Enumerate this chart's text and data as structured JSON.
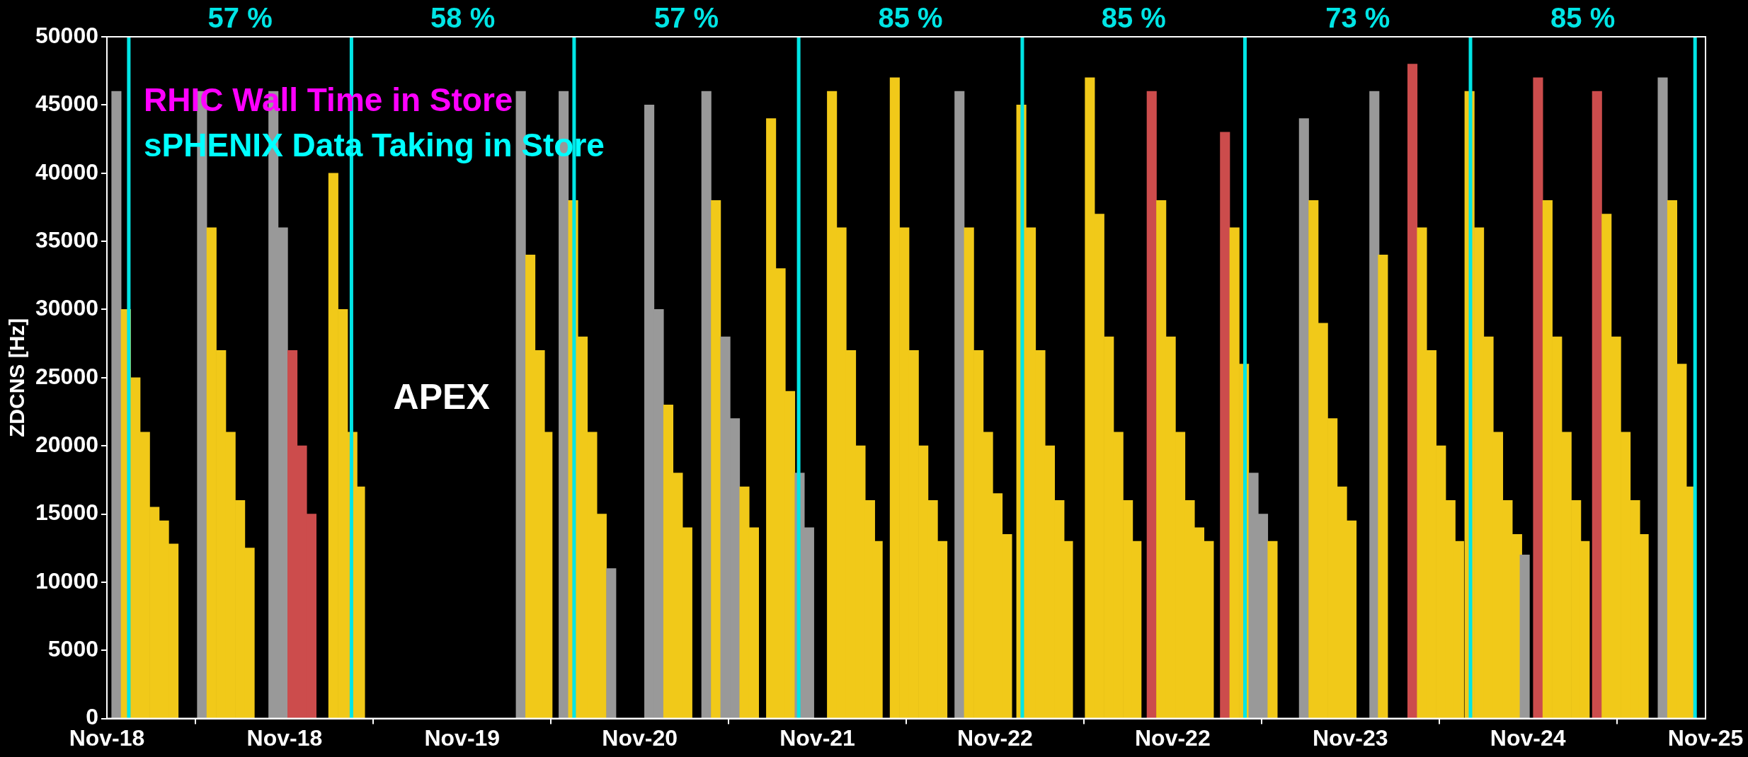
{
  "chart_data": {
    "type": "bar",
    "ylabel": "ZDCNS [Hz]",
    "xlim": [
      "--11-18T04:00",
      "--11-25T04:00"
    ],
    "xticks": [
      {
        "value": "--11-18T04:00",
        "label": "Nov-18"
      },
      {
        "value": "--11-18T22:40",
        "label": "Nov-18"
      },
      {
        "value": "--11-19T17:20",
        "label": "Nov-19"
      },
      {
        "value": "--11-20T12:00",
        "label": "Nov-20"
      },
      {
        "value": "--11-21T06:40",
        "label": "Nov-21"
      },
      {
        "value": "--11-22T01:20",
        "label": "Nov-22"
      },
      {
        "value": "--11-22T20:00",
        "label": "Nov-22"
      },
      {
        "value": "--11-23T14:40",
        "label": "Nov-23"
      },
      {
        "value": "--11-24T09:20",
        "label": "Nov-24"
      },
      {
        "value": "--11-25T04:00",
        "label": "Nov-25"
      }
    ],
    "ylim": [
      0,
      50000
    ],
    "yticks": [
      0,
      5000,
      10000,
      15000,
      20000,
      25000,
      30000,
      35000,
      40000,
      45000,
      50000
    ],
    "grid": false,
    "legend": false,
    "x": [
      "--11-18T05:00",
      "--11-18T06:00",
      "--11-18T07:00",
      "--11-18T08:00",
      "--11-18T09:00",
      "--11-18T10:00",
      "--11-18T11:00",
      "--11-18T14:00",
      "--11-18T15:00",
      "--11-18T16:00",
      "--11-18T17:00",
      "--11-18T18:00",
      "--11-18T19:00",
      "--11-18T21:30",
      "--11-18T22:30",
      "--11-18T23:30",
      "--11-19T00:30",
      "--11-19T01:30",
      "--11-19T03:48",
      "--11-19T04:48",
      "--11-19T05:48",
      "--11-19T06:36",
      "--11-19T23:30",
      "--11-20T00:30",
      "--11-20T01:30",
      "--11-20T02:18",
      "--11-20T04:00",
      "--11-20T05:00",
      "--11-20T06:00",
      "--11-20T07:00",
      "--11-20T08:00",
      "--11-20T09:00",
      "--11-20T13:00",
      "--11-20T14:00",
      "--11-20T15:00",
      "--11-20T16:00",
      "--11-20T17:00",
      "--11-20T19:00",
      "--11-20T20:00",
      "--11-20T21:00",
      "--11-20T22:00",
      "--11-20T23:00",
      "--11-21T00:00",
      "--11-21T01:48",
      "--11-21T02:48",
      "--11-21T03:48",
      "--11-21T04:48",
      "--11-21T05:48",
      "--11-21T08:12",
      "--11-21T09:12",
      "--11-21T10:12",
      "--11-21T11:12",
      "--11-21T12:12",
      "--11-21T13:00",
      "--11-21T14:48",
      "--11-21T15:48",
      "--11-21T16:48",
      "--11-21T17:48",
      "--11-21T18:48",
      "--11-21T19:48",
      "--11-21T21:36",
      "--11-21T22:36",
      "--11-21T23:36",
      "--11-22T00:36",
      "--11-22T01:36",
      "--11-22T02:36",
      "--11-22T04:06",
      "--11-22T05:06",
      "--11-22T06:06",
      "--11-22T07:06",
      "--11-22T08:06",
      "--11-22T09:00",
      "--11-22T11:18",
      "--11-22T12:18",
      "--11-22T13:18",
      "--11-22T14:18",
      "--11-22T15:18",
      "--11-22T16:12",
      "--11-22T17:48",
      "--11-22T18:48",
      "--11-22T19:48",
      "--11-22T20:48",
      "--11-22T21:48",
      "--11-22T22:48",
      "--11-22T23:48",
      "--11-23T01:30",
      "--11-23T02:30",
      "--11-23T03:30",
      "--11-23T04:30",
      "--11-23T05:30",
      "--11-23T06:30",
      "--11-23T09:48",
      "--11-23T10:48",
      "--11-23T11:48",
      "--11-23T12:48",
      "--11-23T13:48",
      "--11-23T14:48",
      "--11-23T17:12",
      "--11-23T18:06",
      "--11-23T21:12",
      "--11-23T22:12",
      "--11-23T23:12",
      "--11-24T00:12",
      "--11-24T01:12",
      "--11-24T02:06",
      "--11-24T03:12",
      "--11-24T04:12",
      "--11-24T05:12",
      "--11-24T06:12",
      "--11-24T07:12",
      "--11-24T08:12",
      "--11-24T09:00",
      "--11-24T10:24",
      "--11-24T11:24",
      "--11-24T12:24",
      "--11-24T13:24",
      "--11-24T14:24",
      "--11-24T15:18",
      "--11-24T16:36",
      "--11-24T17:36",
      "--11-24T18:36",
      "--11-24T19:36",
      "--11-24T20:36",
      "--11-24T21:30",
      "--11-24T23:30",
      "--11-25T00:30",
      "--11-25T01:30",
      "--11-25T02:30"
    ],
    "values": [
      46000,
      30000,
      25000,
      21000,
      15500,
      14500,
      12800,
      46000,
      36000,
      27000,
      21000,
      16000,
      12500,
      46000,
      36000,
      27000,
      20000,
      15000,
      40000,
      30000,
      21000,
      17000,
      46000,
      34000,
      27000,
      21000,
      46000,
      38000,
      28000,
      21000,
      15000,
      11000,
      45000,
      30000,
      23000,
      18000,
      14000,
      46000,
      38000,
      28000,
      22000,
      17000,
      14000,
      44000,
      33000,
      24000,
      18000,
      14000,
      46000,
      36000,
      27000,
      20000,
      16000,
      13000,
      47000,
      36000,
      27000,
      20000,
      16000,
      13000,
      46000,
      36000,
      27000,
      21000,
      16500,
      13500,
      45000,
      36000,
      27000,
      20000,
      16000,
      13000,
      47000,
      37000,
      28000,
      21000,
      16000,
      13000,
      46000,
      38000,
      28000,
      21000,
      16000,
      14000,
      13000,
      43000,
      36000,
      26000,
      18000,
      15000,
      13000,
      44000,
      38000,
      29000,
      22000,
      17000,
      14500,
      46000,
      34000,
      48000,
      36000,
      27000,
      20000,
      16000,
      13000,
      46000,
      36000,
      28000,
      21000,
      16000,
      13500,
      12000,
      47000,
      38000,
      28000,
      21000,
      16000,
      13000,
      46000,
      37000,
      28000,
      21000,
      16000,
      13500,
      47000,
      38000,
      26000,
      17000
    ],
    "colors": [
      "#999999",
      "#f1c919",
      "#f1c919",
      "#f1c919",
      "#f1c919",
      "#f1c919",
      "#f1c919",
      "#999999",
      "#f1c919",
      "#f1c919",
      "#f1c919",
      "#f1c919",
      "#f1c919",
      "#999999",
      "#999999",
      "#cc4c4c",
      "#cc4c4c",
      "#cc4c4c",
      "#f1c919",
      "#f1c919",
      "#f1c919",
      "#f1c919",
      "#999999",
      "#f1c919",
      "#f1c919",
      "#f1c919",
      "#999999",
      "#f1c919",
      "#f1c919",
      "#f1c919",
      "#f1c919",
      "#999999",
      "#999999",
      "#999999",
      "#f1c919",
      "#f1c919",
      "#f1c919",
      "#999999",
      "#f1c919",
      "#999999",
      "#999999",
      "#f1c919",
      "#f1c919",
      "#f1c919",
      "#f1c919",
      "#f1c919",
      "#999999",
      "#999999",
      "#f1c919",
      "#f1c919",
      "#f1c919",
      "#f1c919",
      "#f1c919",
      "#f1c919",
      "#f1c919",
      "#f1c919",
      "#f1c919",
      "#f1c919",
      "#f1c919",
      "#f1c919",
      "#999999",
      "#f1c919",
      "#f1c919",
      "#f1c919",
      "#f1c919",
      "#f1c919",
      "#f1c919",
      "#f1c919",
      "#f1c919",
      "#f1c919",
      "#f1c919",
      "#f1c919",
      "#f1c919",
      "#f1c919",
      "#f1c919",
      "#f1c919",
      "#f1c919",
      "#f1c919",
      "#cc4c4c",
      "#f1c919",
      "#f1c919",
      "#f1c919",
      "#f1c919",
      "#f1c919",
      "#f1c919",
      "#cc4c4c",
      "#f1c919",
      "#f1c919",
      "#999999",
      "#999999",
      "#f1c919",
      "#999999",
      "#f1c919",
      "#f1c919",
      "#f1c919",
      "#f1c919",
      "#f1c919",
      "#999999",
      "#f1c919",
      "#cc4c4c",
      "#f1c919",
      "#f1c919",
      "#f1c919",
      "#f1c919",
      "#f1c919",
      "#f1c919",
      "#f1c919",
      "#f1c919",
      "#f1c919",
      "#f1c919",
      "#f1c919",
      "#999999",
      "#cc4c4c",
      "#f1c919",
      "#f1c919",
      "#f1c919",
      "#f1c919",
      "#f1c919",
      "#cc4c4c",
      "#f1c919",
      "#f1c919",
      "#f1c919",
      "#f1c919",
      "#f1c919",
      "#999999",
      "#f1c919",
      "#f1c919",
      "#f1c919"
    ],
    "ref_lines": [
      {
        "axis": "x",
        "value": "--11-18T06:18",
        "color": "#00e5e5"
      },
      {
        "axis": "x",
        "value": "--11-19T05:42",
        "color": "#00e5e5"
      },
      {
        "axis": "x",
        "value": "--11-20T05:06",
        "color": "#00e5e5"
      },
      {
        "axis": "x",
        "value": "--11-21T04:42",
        "color": "#00e5e5"
      },
      {
        "axis": "x",
        "value": "--11-22T04:12",
        "color": "#00e5e5"
      },
      {
        "axis": "x",
        "value": "--11-23T03:36",
        "color": "#00e5e5"
      },
      {
        "axis": "x",
        "value": "--11-24T03:18",
        "color": "#00e5e5"
      },
      {
        "axis": "x",
        "value": "--11-25T02:54",
        "color": "#00e5e5"
      }
    ],
    "annotations": [
      "RHIC Wall Time in Store",
      "sPHENIX Data Taking in Store",
      "57 %",
      "58 %",
      "57 %",
      "85 %",
      "85 %",
      "73 %",
      "85 %",
      "APEX"
    ]
  }
}
